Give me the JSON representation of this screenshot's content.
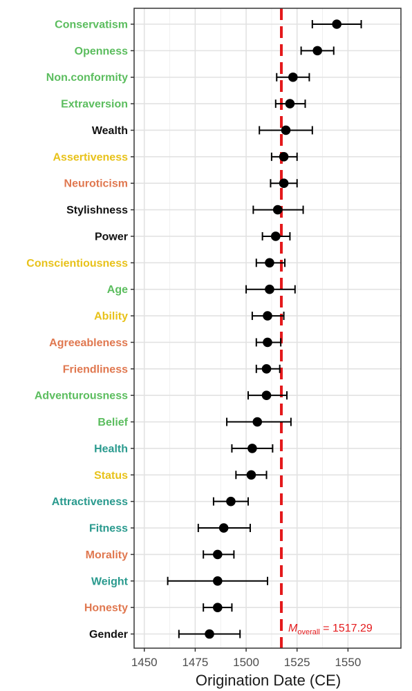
{
  "chart_data": {
    "type": "scatter",
    "xlabel": "Origination Date (CE)",
    "ylabel": "",
    "xlim": [
      1445,
      1576
    ],
    "xticks": [
      "1450",
      "1475",
      "1500",
      "1525",
      "1550"
    ],
    "grid": true,
    "reference_line": {
      "value": 1517.29,
      "color": "#e41a1c",
      "style": "dashed"
    },
    "annotation": {
      "symbol": "M",
      "subscript": "overall",
      "value_text": " = 1517.29"
    },
    "colors": {
      "green": "#5bbd5e",
      "yellow": "#e8c21a",
      "orange": "#e07850",
      "teal": "#2a9a8e",
      "black": "#111111"
    },
    "points": [
      {
        "label": "Conservatism",
        "color": "green",
        "x": 1544.5,
        "lo": 1532.5,
        "hi": 1556.5
      },
      {
        "label": "Openness",
        "color": "green",
        "x": 1535.0,
        "lo": 1527.0,
        "hi": 1543.0
      },
      {
        "label": "Non.conformity",
        "color": "green",
        "x": 1523.0,
        "lo": 1515.0,
        "hi": 1531.0
      },
      {
        "label": "Extraversion",
        "color": "green",
        "x": 1521.5,
        "lo": 1514.5,
        "hi": 1529.0
      },
      {
        "label": "Wealth",
        "color": "black",
        "x": 1519.5,
        "lo": 1506.5,
        "hi": 1532.5
      },
      {
        "label": "Assertiveness",
        "color": "yellow",
        "x": 1518.5,
        "lo": 1512.5,
        "hi": 1525.0
      },
      {
        "label": "Neuroticism",
        "color": "orange",
        "x": 1518.5,
        "lo": 1512.0,
        "hi": 1525.0
      },
      {
        "label": "Stylishness",
        "color": "black",
        "x": 1515.5,
        "lo": 1503.5,
        "hi": 1528.0
      },
      {
        "label": "Power",
        "color": "black",
        "x": 1514.5,
        "lo": 1508.0,
        "hi": 1521.5
      },
      {
        "label": "Conscientiousness",
        "color": "yellow",
        "x": 1511.5,
        "lo": 1505.0,
        "hi": 1519.0
      },
      {
        "label": "Age",
        "color": "green",
        "x": 1511.5,
        "lo": 1500.0,
        "hi": 1524.0
      },
      {
        "label": "Ability",
        "color": "yellow",
        "x": 1510.5,
        "lo": 1503.0,
        "hi": 1518.5
      },
      {
        "label": "Agreeableness",
        "color": "orange",
        "x": 1510.5,
        "lo": 1505.0,
        "hi": 1517.0
      },
      {
        "label": "Friendliness",
        "color": "orange",
        "x": 1510.0,
        "lo": 1505.0,
        "hi": 1516.5
      },
      {
        "label": "Adventurousness",
        "color": "green",
        "x": 1510.0,
        "lo": 1501.0,
        "hi": 1520.0
      },
      {
        "label": "Belief",
        "color": "green",
        "x": 1505.5,
        "lo": 1490.5,
        "hi": 1522.0
      },
      {
        "label": "Health",
        "color": "teal",
        "x": 1503.0,
        "lo": 1493.0,
        "hi": 1513.0
      },
      {
        "label": "Status",
        "color": "yellow",
        "x": 1502.5,
        "lo": 1495.0,
        "hi": 1510.0
      },
      {
        "label": "Attractiveness",
        "color": "teal",
        "x": 1492.5,
        "lo": 1484.0,
        "hi": 1501.0
      },
      {
        "label": "Fitness",
        "color": "teal",
        "x": 1489.0,
        "lo": 1476.5,
        "hi": 1502.0
      },
      {
        "label": "Morality",
        "color": "orange",
        "x": 1486.0,
        "lo": 1479.0,
        "hi": 1494.0
      },
      {
        "label": "Weight",
        "color": "teal",
        "x": 1486.0,
        "lo": 1461.5,
        "hi": 1510.5
      },
      {
        "label": "Honesty",
        "color": "orange",
        "x": 1486.0,
        "lo": 1479.0,
        "hi": 1493.0
      },
      {
        "label": "Gender",
        "color": "black",
        "x": 1482.0,
        "lo": 1467.0,
        "hi": 1497.0
      }
    ]
  }
}
